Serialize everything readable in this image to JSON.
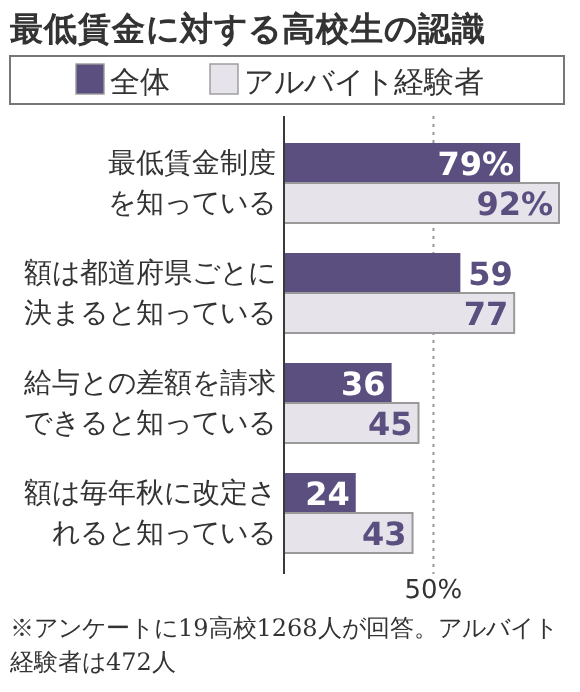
{
  "chart_data": {
    "type": "bar",
    "orientation": "horizontal",
    "title": "最低賃金に対する高校生の認識",
    "categories": [
      "最低賃金制度を知っている",
      "額は都道府県ごとに決まると知っている",
      "給与との差額を請求できると知っている",
      "額は毎年秋に改定されると知っている"
    ],
    "series": [
      {
        "name": "全体",
        "color": "#5b4f80",
        "values": [
          79,
          59,
          36,
          24
        ],
        "value_labels": [
          "79%",
          "59",
          "36",
          "24"
        ]
      },
      {
        "name": "アルバイト経験者",
        "color": "#e6e3eb",
        "values": [
          92,
          77,
          45,
          43
        ],
        "value_labels": [
          "92%",
          "77",
          "45",
          "43"
        ]
      }
    ],
    "xlim": [
      0,
      93
    ],
    "tick_labels": "y",
    "legend": "top",
    "ref_lines": [
      {
        "axis": "x",
        "value": 50,
        "label": "50%",
        "line_style": "dotted",
        "color": "#999999"
      }
    ],
    "annotations": [
      "※アンケートに19高校1268人が回答。アルバイト経験者は472人"
    ]
  }
}
